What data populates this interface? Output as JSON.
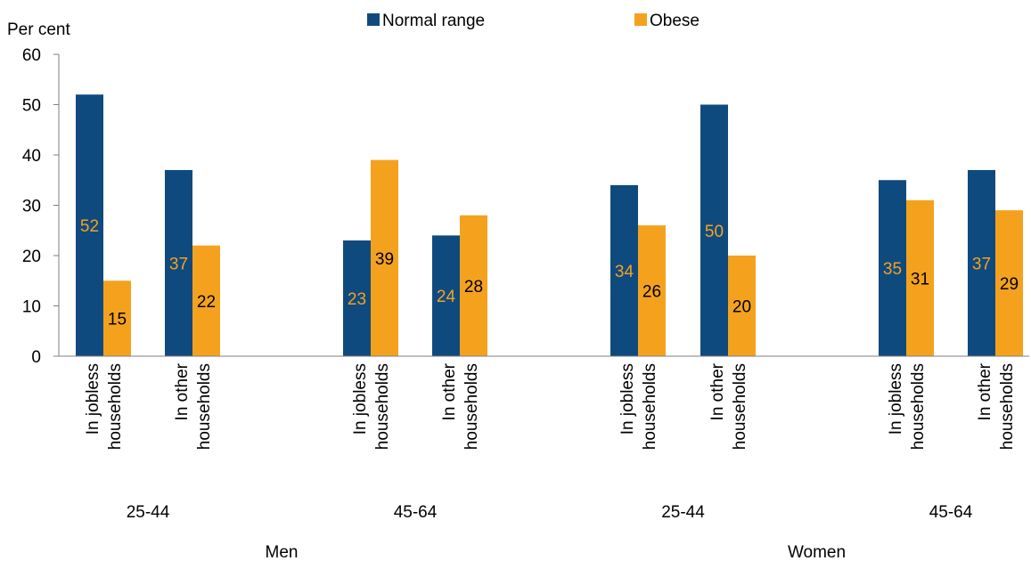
{
  "chart_data": {
    "type": "bar",
    "ylabel": "Per cent",
    "ylim": [
      0,
      60
    ],
    "yticks": [
      0,
      10,
      20,
      30,
      40,
      50,
      60
    ],
    "grid": false,
    "legend_position": "top-center",
    "colors": {
      "normal": "#0f4a7f",
      "obese": "#f4a21e",
      "axis": "#7f7f7f",
      "text": "#000000"
    },
    "series": [
      {
        "name": "Normal range",
        "color": "#0f4a7f",
        "values": [
          52,
          37,
          23,
          24,
          34,
          50,
          35,
          37
        ]
      },
      {
        "name": "Obese",
        "color": "#f4a21e",
        "values": [
          15,
          22,
          39,
          28,
          26,
          20,
          31,
          29
        ]
      }
    ],
    "categories": [
      {
        "line1": "In jobless",
        "line2": "households"
      },
      {
        "line1": "In other",
        "line2": "households"
      },
      {
        "line1": "In jobless",
        "line2": "households"
      },
      {
        "line1": "In other",
        "line2": "households"
      },
      {
        "line1": "In jobless",
        "line2": "households"
      },
      {
        "line1": "In other",
        "line2": "households"
      },
      {
        "line1": "In jobless",
        "line2": "households"
      },
      {
        "line1": "In other",
        "line2": "households"
      }
    ],
    "age_groups": [
      {
        "label": "25-44",
        "from": 0,
        "to": 1
      },
      {
        "label": "45-64",
        "from": 2,
        "to": 3
      },
      {
        "label": "25-44",
        "from": 4,
        "to": 5
      },
      {
        "label": "45-64",
        "from": 6,
        "to": 7
      }
    ],
    "sex_groups": [
      {
        "label": "Men",
        "from": 0,
        "to": 3
      },
      {
        "label": "Women",
        "from": 4,
        "to": 7
      }
    ]
  }
}
